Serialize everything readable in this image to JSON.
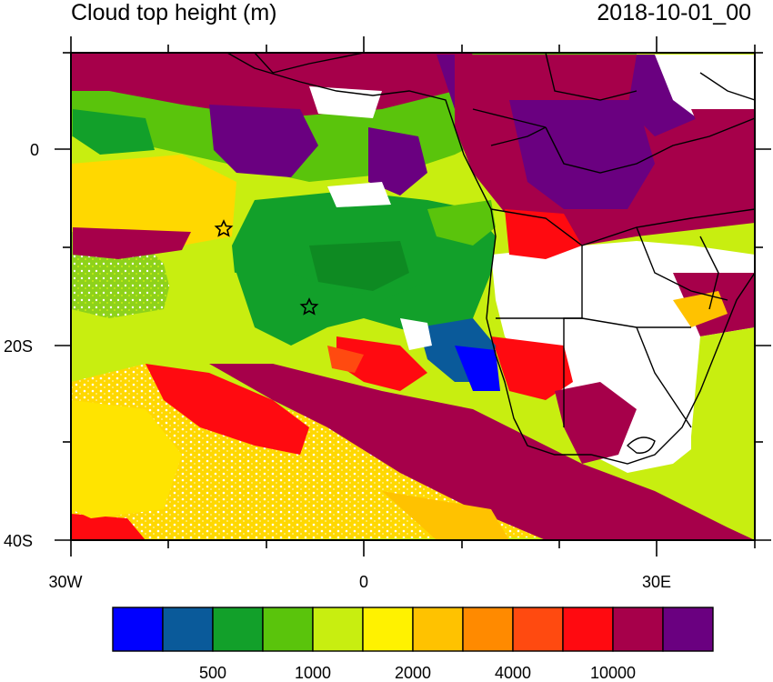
{
  "title": "Cloud top height (m)",
  "timestamp": "2018-10-01_00",
  "axes": {
    "lat_ticks": [
      "0",
      "20S",
      "40S"
    ],
    "lon_ticks": [
      "30W",
      "0",
      "30E"
    ]
  },
  "colorbar": {
    "colors": [
      "#0000ff",
      "#0a5a9a",
      "#12a02a",
      "#5ac40c",
      "#c8ee10",
      "#fff200",
      "#ffc200",
      "#ff8a00",
      "#ff4a10",
      "#ff0a10",
      "#a6004a",
      "#6a0080"
    ],
    "labels": [
      "500",
      "1000",
      "2000",
      "4000",
      "10000"
    ]
  },
  "markers": [
    {
      "name": "star-marker-north"
    },
    {
      "name": "star-marker-south"
    }
  ]
}
